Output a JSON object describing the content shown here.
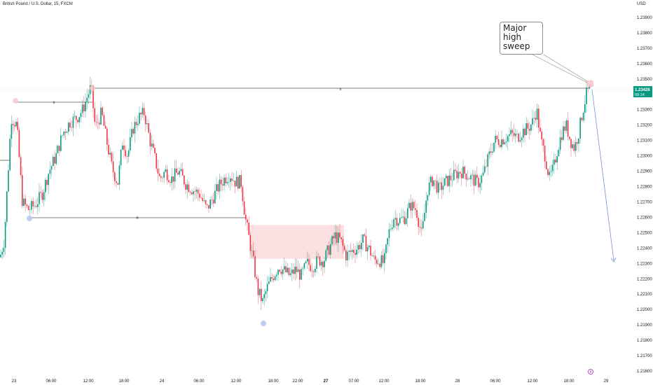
{
  "symbol": "British Pound / U.S. Dollar, 15, FXCM",
  "currency": "USD",
  "price_tag": {
    "price": "1.23426",
    "countdown": "09:14"
  },
  "callout": {
    "lines": [
      "Major",
      "high",
      "sweep"
    ]
  },
  "level_markers": {
    "top": "x",
    "left": "x",
    "bottom": "#"
  },
  "colors": {
    "up": "#089981",
    "down": "#f23645",
    "zone": "#fbd9db",
    "projection": "#7d9fd6",
    "level": "#555555"
  },
  "chart_data": {
    "type": "candlestick",
    "y_ticks": [
      "1.23900",
      "1.23800",
      "1.23700",
      "1.23600",
      "1.23500",
      "1.23400",
      "1.23300",
      "1.23200",
      "1.23100",
      "1.23000",
      "1.22900",
      "1.22800",
      "1.22700",
      "1.22600",
      "1.22500",
      "1.22400",
      "1.22300",
      "1.22200",
      "1.22100",
      "1.22000",
      "1.21900",
      "1.21800",
      "1.21700",
      "1.21600"
    ],
    "x_ticks": [
      "23",
      "06:00",
      "12:00",
      "18:00",
      "24",
      "06:00",
      "12:00",
      "18:00",
      "22:00",
      "27",
      "07:00",
      "12:00",
      "18:00",
      "28",
      "06:00",
      "12:00",
      "18:00",
      "29"
    ],
    "bold_x_ticks": [
      "27"
    ],
    "ylim": [
      1.2157,
      1.2397
    ],
    "path": [
      [
        0,
        1.2234
      ],
      [
        6,
        1.2245
      ],
      [
        16,
        1.2325
      ],
      [
        24,
        1.232
      ],
      [
        32,
        1.227
      ],
      [
        40,
        1.2265
      ],
      [
        50,
        1.2268
      ],
      [
        60,
        1.2275
      ],
      [
        70,
        1.229
      ],
      [
        80,
        1.23
      ],
      [
        90,
        1.2315
      ],
      [
        100,
        1.2322
      ],
      [
        110,
        1.2325
      ],
      [
        118,
        1.233
      ],
      [
        124,
        1.2338
      ],
      [
        130,
        1.2345
      ],
      [
        136,
        1.2318
      ],
      [
        145,
        1.2328
      ],
      [
        152,
        1.231
      ],
      [
        160,
        1.2292
      ],
      [
        168,
        1.2282
      ],
      [
        175,
        1.231
      ],
      [
        182,
        1.23
      ],
      [
        190,
        1.2318
      ],
      [
        198,
        1.2325
      ],
      [
        206,
        1.2328
      ],
      [
        214,
        1.231
      ],
      [
        220,
        1.23
      ],
      [
        228,
        1.2285
      ],
      [
        236,
        1.229
      ],
      [
        245,
        1.2285
      ],
      [
        255,
        1.229
      ],
      [
        265,
        1.2282
      ],
      [
        275,
        1.2278
      ],
      [
        285,
        1.2275
      ],
      [
        295,
        1.2265
      ],
      [
        303,
        1.2272
      ],
      [
        312,
        1.228
      ],
      [
        320,
        1.2285
      ],
      [
        328,
        1.2288
      ],
      [
        336,
        1.2283
      ],
      [
        344,
        1.2283
      ],
      [
        350,
        1.226
      ],
      [
        356,
        1.2245
      ],
      [
        362,
        1.223
      ],
      [
        368,
        1.2212
      ],
      [
        375,
        1.2205
      ],
      [
        382,
        1.2215
      ],
      [
        390,
        1.2222
      ],
      [
        398,
        1.2228
      ],
      [
        406,
        1.2225
      ],
      [
        414,
        1.2222
      ],
      [
        422,
        1.2226
      ],
      [
        430,
        1.2222
      ],
      [
        438,
        1.223
      ],
      [
        446,
        1.2228
      ],
      [
        454,
        1.2232
      ],
      [
        462,
        1.2232
      ],
      [
        470,
        1.224
      ],
      [
        478,
        1.2248
      ],
      [
        486,
        1.2245
      ],
      [
        494,
        1.2235
      ],
      [
        502,
        1.2238
      ],
      [
        510,
        1.224
      ],
      [
        518,
        1.2245
      ],
      [
        526,
        1.224
      ],
      [
        534,
        1.2232
      ],
      [
        542,
        1.2232
      ],
      [
        548,
        1.223
      ],
      [
        555,
        1.225
      ],
      [
        562,
        1.226
      ],
      [
        570,
        1.2258
      ],
      [
        578,
        1.226
      ],
      [
        586,
        1.2268
      ],
      [
        594,
        1.2265
      ],
      [
        602,
        1.2248
      ],
      [
        610,
        1.2278
      ],
      [
        618,
        1.2285
      ],
      [
        626,
        1.2278
      ],
      [
        634,
        1.2282
      ],
      [
        642,
        1.2285
      ],
      [
        650,
        1.2288
      ],
      [
        658,
        1.229
      ],
      [
        666,
        1.2288
      ],
      [
        674,
        1.2285
      ],
      [
        682,
        1.2282
      ],
      [
        690,
        1.2288
      ],
      [
        698,
        1.23
      ],
      [
        706,
        1.231
      ],
      [
        714,
        1.231
      ],
      [
        722,
        1.2312
      ],
      [
        730,
        1.2314
      ],
      [
        738,
        1.2312
      ],
      [
        746,
        1.2316
      ],
      [
        754,
        1.2318
      ],
      [
        760,
        1.2322
      ],
      [
        766,
        1.233
      ],
      [
        772,
        1.231
      ],
      [
        778,
        1.23
      ],
      [
        784,
        1.2285
      ],
      [
        790,
        1.2292
      ],
      [
        796,
        1.2305
      ],
      [
        802,
        1.2315
      ],
      [
        808,
        1.232
      ],
      [
        814,
        1.231
      ],
      [
        820,
        1.2305
      ],
      [
        826,
        1.2315
      ],
      [
        832,
        1.233
      ],
      [
        838,
        1.2342
      ],
      [
        844,
        1.2343
      ]
    ]
  }
}
